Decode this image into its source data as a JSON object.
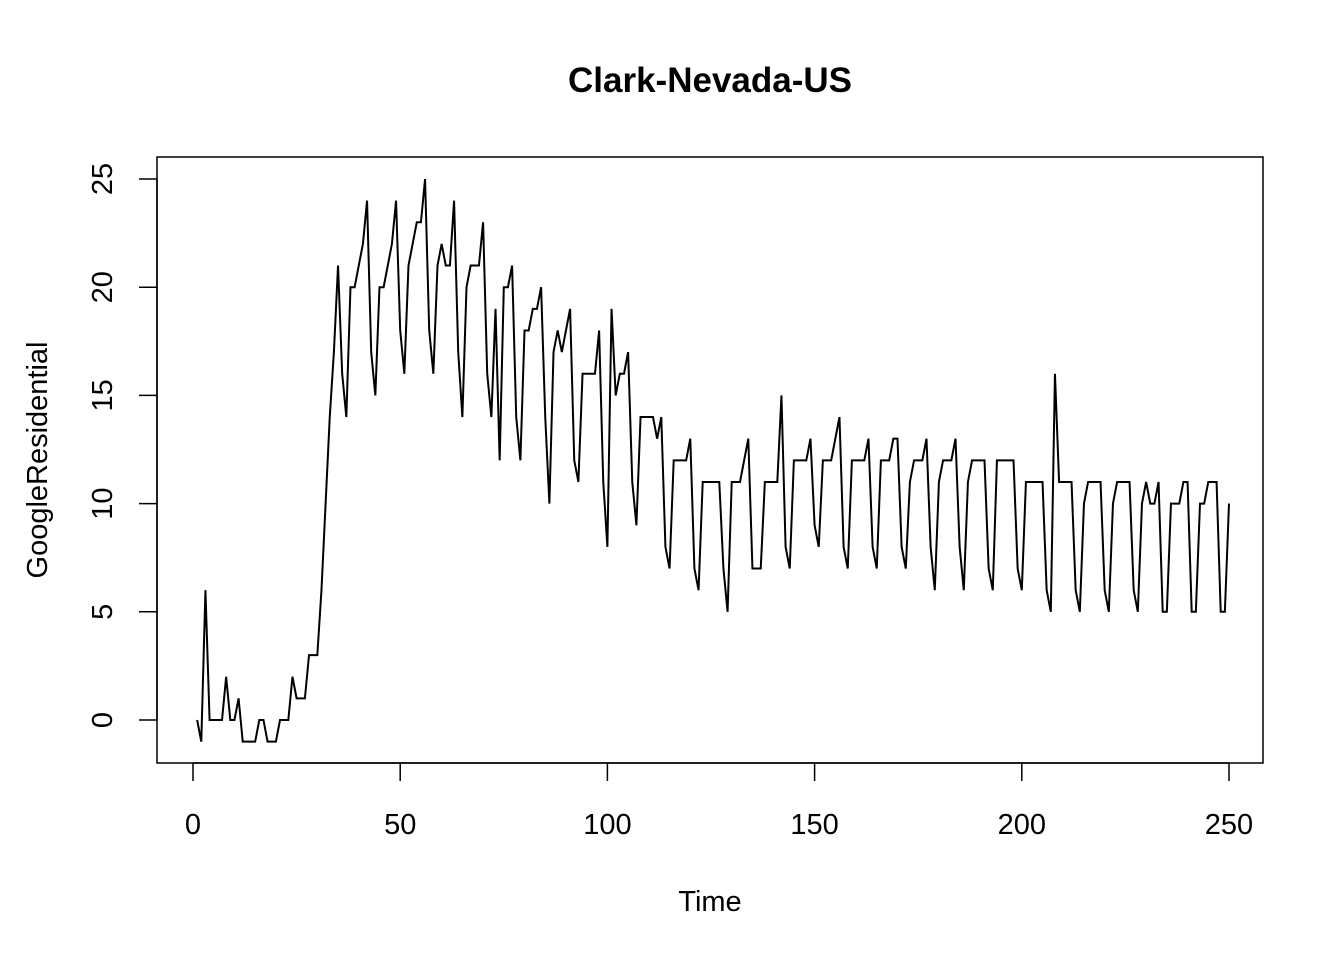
{
  "chart_data": {
    "type": "line",
    "title": "Clark-Nevada-US",
    "xlabel": "Time",
    "ylabel": "GoogleResidential",
    "xlim": [
      1,
      248
    ],
    "ylim": [
      -1,
      25
    ],
    "xticks": [
      0,
      50,
      100,
      150,
      200,
      250
    ],
    "xtick_labels": [
      "0",
      "50",
      "100",
      "150",
      "200",
      "250"
    ],
    "yticks": [
      0,
      5,
      10,
      15,
      20,
      25
    ],
    "ytick_labels": [
      "0",
      "5",
      "10",
      "15",
      "20",
      "25"
    ],
    "grid": false,
    "legend": "none",
    "line_color": "#000000",
    "series": [
      {
        "values": [
          0,
          -1,
          6,
          0,
          0,
          0,
          0,
          2,
          0,
          0,
          1,
          -1,
          -1,
          -1,
          -1,
          0,
          0,
          -1,
          -1,
          -1,
          0,
          0,
          0,
          2,
          1,
          1,
          1,
          3,
          3,
          3,
          6,
          10,
          14,
          17,
          21,
          16,
          14,
          20,
          20,
          21,
          22,
          24,
          17,
          15,
          20,
          20,
          21,
          22,
          24,
          18,
          16,
          21,
          22,
          23,
          23,
          25,
          18,
          16,
          21,
          22,
          21,
          21,
          24,
          17,
          14,
          20,
          21,
          21,
          21,
          23,
          16,
          14,
          19,
          12,
          20,
          20,
          21,
          14,
          12,
          18,
          18,
          19,
          19,
          20,
          14,
          10,
          17,
          18,
          17,
          18,
          19,
          12,
          11,
          16,
          16,
          16,
          16,
          18,
          11,
          8,
          19,
          15,
          16,
          16,
          17,
          11,
          9,
          14,
          14,
          14,
          14,
          13,
          14,
          8,
          7,
          12,
          12,
          12,
          12,
          13,
          7,
          6,
          11,
          11,
          11,
          11,
          11,
          7,
          5,
          11,
          11,
          11,
          12,
          13,
          7,
          7,
          7,
          11,
          11,
          11,
          11,
          15,
          8,
          7,
          12,
          12,
          12,
          12,
          13,
          9,
          8,
          12,
          12,
          12,
          13,
          14,
          8,
          7,
          12,
          12,
          12,
          12,
          13,
          8,
          7,
          12,
          12,
          12,
          13,
          13,
          8,
          7,
          11,
          12,
          12,
          12,
          13,
          8,
          6,
          11,
          12,
          12,
          12,
          13,
          8,
          6,
          11,
          12,
          12,
          12,
          12,
          7,
          6,
          12,
          12,
          12,
          12,
          12,
          7,
          6,
          11,
          11,
          11,
          11,
          11,
          6,
          5,
          16,
          11,
          11,
          11,
          11,
          6,
          5,
          10,
          11,
          11,
          11,
          11,
          6,
          5,
          10,
          11,
          11,
          11,
          11,
          6,
          5,
          10,
          11,
          10,
          10,
          11,
          5,
          5,
          10,
          10,
          10,
          11,
          11,
          5,
          5,
          10,
          10,
          11,
          11,
          11,
          5,
          5,
          10
        ]
      }
    ]
  }
}
